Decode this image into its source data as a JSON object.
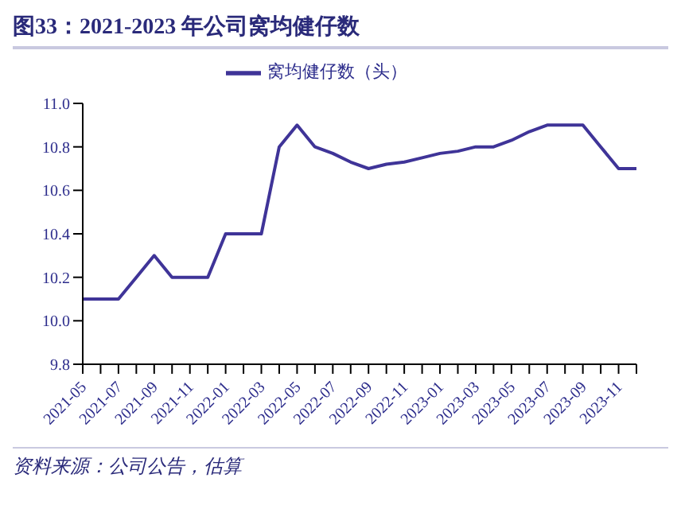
{
  "chart_data": {
    "type": "line",
    "title": "图33：2021-2023 年公司窝均健仔数",
    "categories": [
      "2021-05",
      null,
      "2021-07",
      null,
      "2021-09",
      null,
      "2021-11",
      null,
      "2022-01",
      null,
      "2022-03",
      null,
      "2022-05",
      null,
      "2022-07",
      null,
      "2022-09",
      null,
      "2022-11",
      null,
      "2023-01",
      null,
      "2023-03",
      null,
      "2023-05",
      null,
      "2023-07",
      null,
      "2023-09",
      null,
      "2023-11",
      null
    ],
    "series": [
      {
        "name": "窝均健仔数（头）",
        "color": "#3f3498",
        "values": [
          10.1,
          10.1,
          10.1,
          10.2,
          10.3,
          10.2,
          10.2,
          10.2,
          10.4,
          10.4,
          10.4,
          10.8,
          10.9,
          10.8,
          10.77,
          10.73,
          10.7,
          10.72,
          10.73,
          10.75,
          10.77,
          10.78,
          10.8,
          10.8,
          10.83,
          10.87,
          10.9,
          10.9,
          10.9,
          10.8,
          10.7,
          10.7
        ]
      }
    ],
    "ylim": [
      9.8,
      11.0
    ],
    "yticks": [
      {
        "value": 9.8,
        "label": "9.8"
      },
      {
        "value": 10.0,
        "label": "10.0"
      },
      {
        "value": 10.2,
        "label": "10.2"
      },
      {
        "value": 10.4,
        "label": "10.4"
      },
      {
        "value": 10.6,
        "label": "10.6"
      },
      {
        "value": 10.8,
        "label": "10.8"
      },
      {
        "value": 11.0,
        "label": "11.0"
      }
    ],
    "grid": false,
    "legend": "top",
    "marker": "none",
    "line_style": "solid",
    "annotations": [
      "资料来源：公司公告，估算"
    ]
  }
}
